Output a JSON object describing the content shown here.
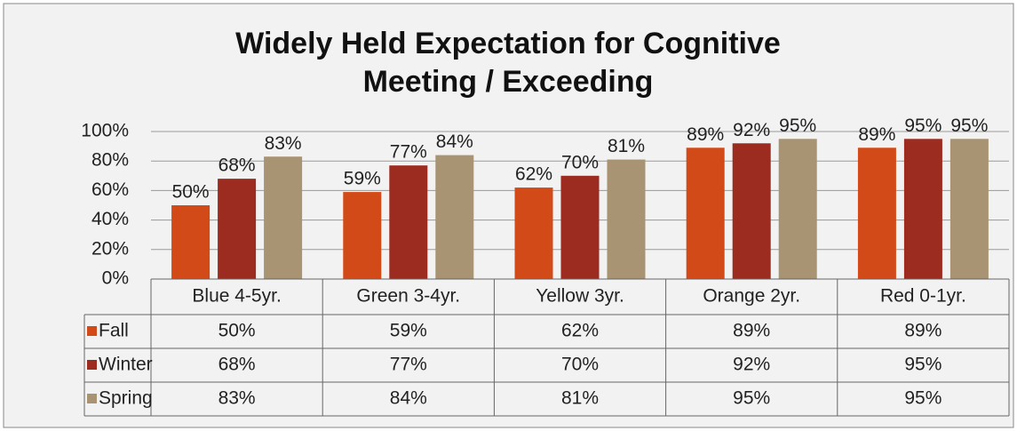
{
  "chart_data": {
    "type": "bar",
    "title": "Widely Held Expectation for Cognitive Meeting / Exceeding",
    "categories": [
      "Blue 4-5yr.",
      "Green 3-4yr.",
      "Yellow 3yr.",
      "Orange 2yr.",
      "Red 0-1yr."
    ],
    "series": [
      {
        "name": "Fall",
        "color": "#d24a17",
        "values": [
          50,
          59,
          62,
          89,
          89
        ],
        "value_labels": [
          "50%",
          "59%",
          "62%",
          "89%",
          "89%"
        ]
      },
      {
        "name": "Winter",
        "color": "#9c2b20",
        "values": [
          68,
          77,
          70,
          92,
          95
        ],
        "value_labels": [
          "68%",
          "77%",
          "70%",
          "92%",
          "95%"
        ]
      },
      {
        "name": "Spring",
        "color": "#a89372",
        "values": [
          83,
          84,
          81,
          95,
          95
        ],
        "value_labels": [
          "83%",
          "84%",
          "81%",
          "95%",
          "95%"
        ]
      }
    ],
    "ylim": [
      0,
      100
    ],
    "yticks": [
      {
        "value": 0,
        "label": "0%"
      },
      {
        "value": 20,
        "label": "20%"
      },
      {
        "value": 40,
        "label": "40%"
      },
      {
        "value": 60,
        "label": "60%"
      },
      {
        "value": 80,
        "label": "80%"
      },
      {
        "value": 100,
        "label": "100%"
      }
    ],
    "grid": true
  }
}
